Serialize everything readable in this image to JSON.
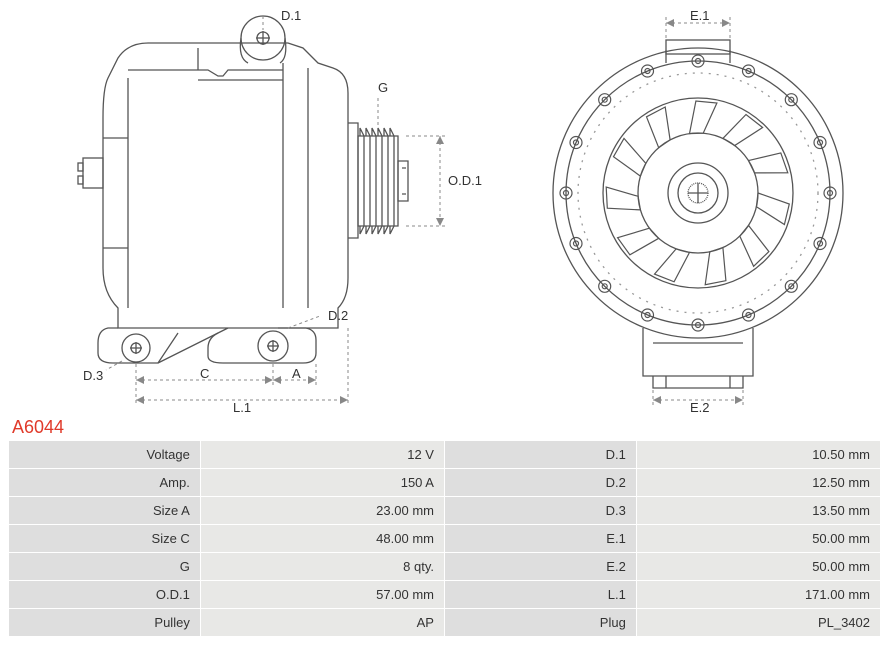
{
  "part_number": "A6044",
  "diagram": {
    "type": "engineering-drawing",
    "stroke": "#555555",
    "stroke_width": 1.3,
    "dim_stroke": "#888888",
    "labels": {
      "D1": "D.1",
      "D2": "D.2",
      "D3": "D.3",
      "G": "G",
      "OD1": "O.D.1",
      "C": "C",
      "A": "A",
      "L1": "L.1",
      "E1": "E.1",
      "E2": "E.2"
    }
  },
  "specs_left": [
    {
      "label": "Voltage",
      "value": "12 V"
    },
    {
      "label": "Amp.",
      "value": "150 A"
    },
    {
      "label": "Size A",
      "value": "23.00 mm"
    },
    {
      "label": "Size C",
      "value": "48.00 mm"
    },
    {
      "label": "G",
      "value": "8 qty."
    },
    {
      "label": "O.D.1",
      "value": "57.00 mm"
    },
    {
      "label": "Pulley",
      "value": "AP"
    }
  ],
  "specs_right": [
    {
      "label": "D.1",
      "value": "10.50 mm"
    },
    {
      "label": "D.2",
      "value": "12.50 mm"
    },
    {
      "label": "D.3",
      "value": "13.50 mm"
    },
    {
      "label": "E.1",
      "value": "50.00 mm"
    },
    {
      "label": "E.2",
      "value": "50.00 mm"
    },
    {
      "label": "L.1",
      "value": "171.00 mm"
    },
    {
      "label": "Plug",
      "value": "PL_3402"
    }
  ]
}
